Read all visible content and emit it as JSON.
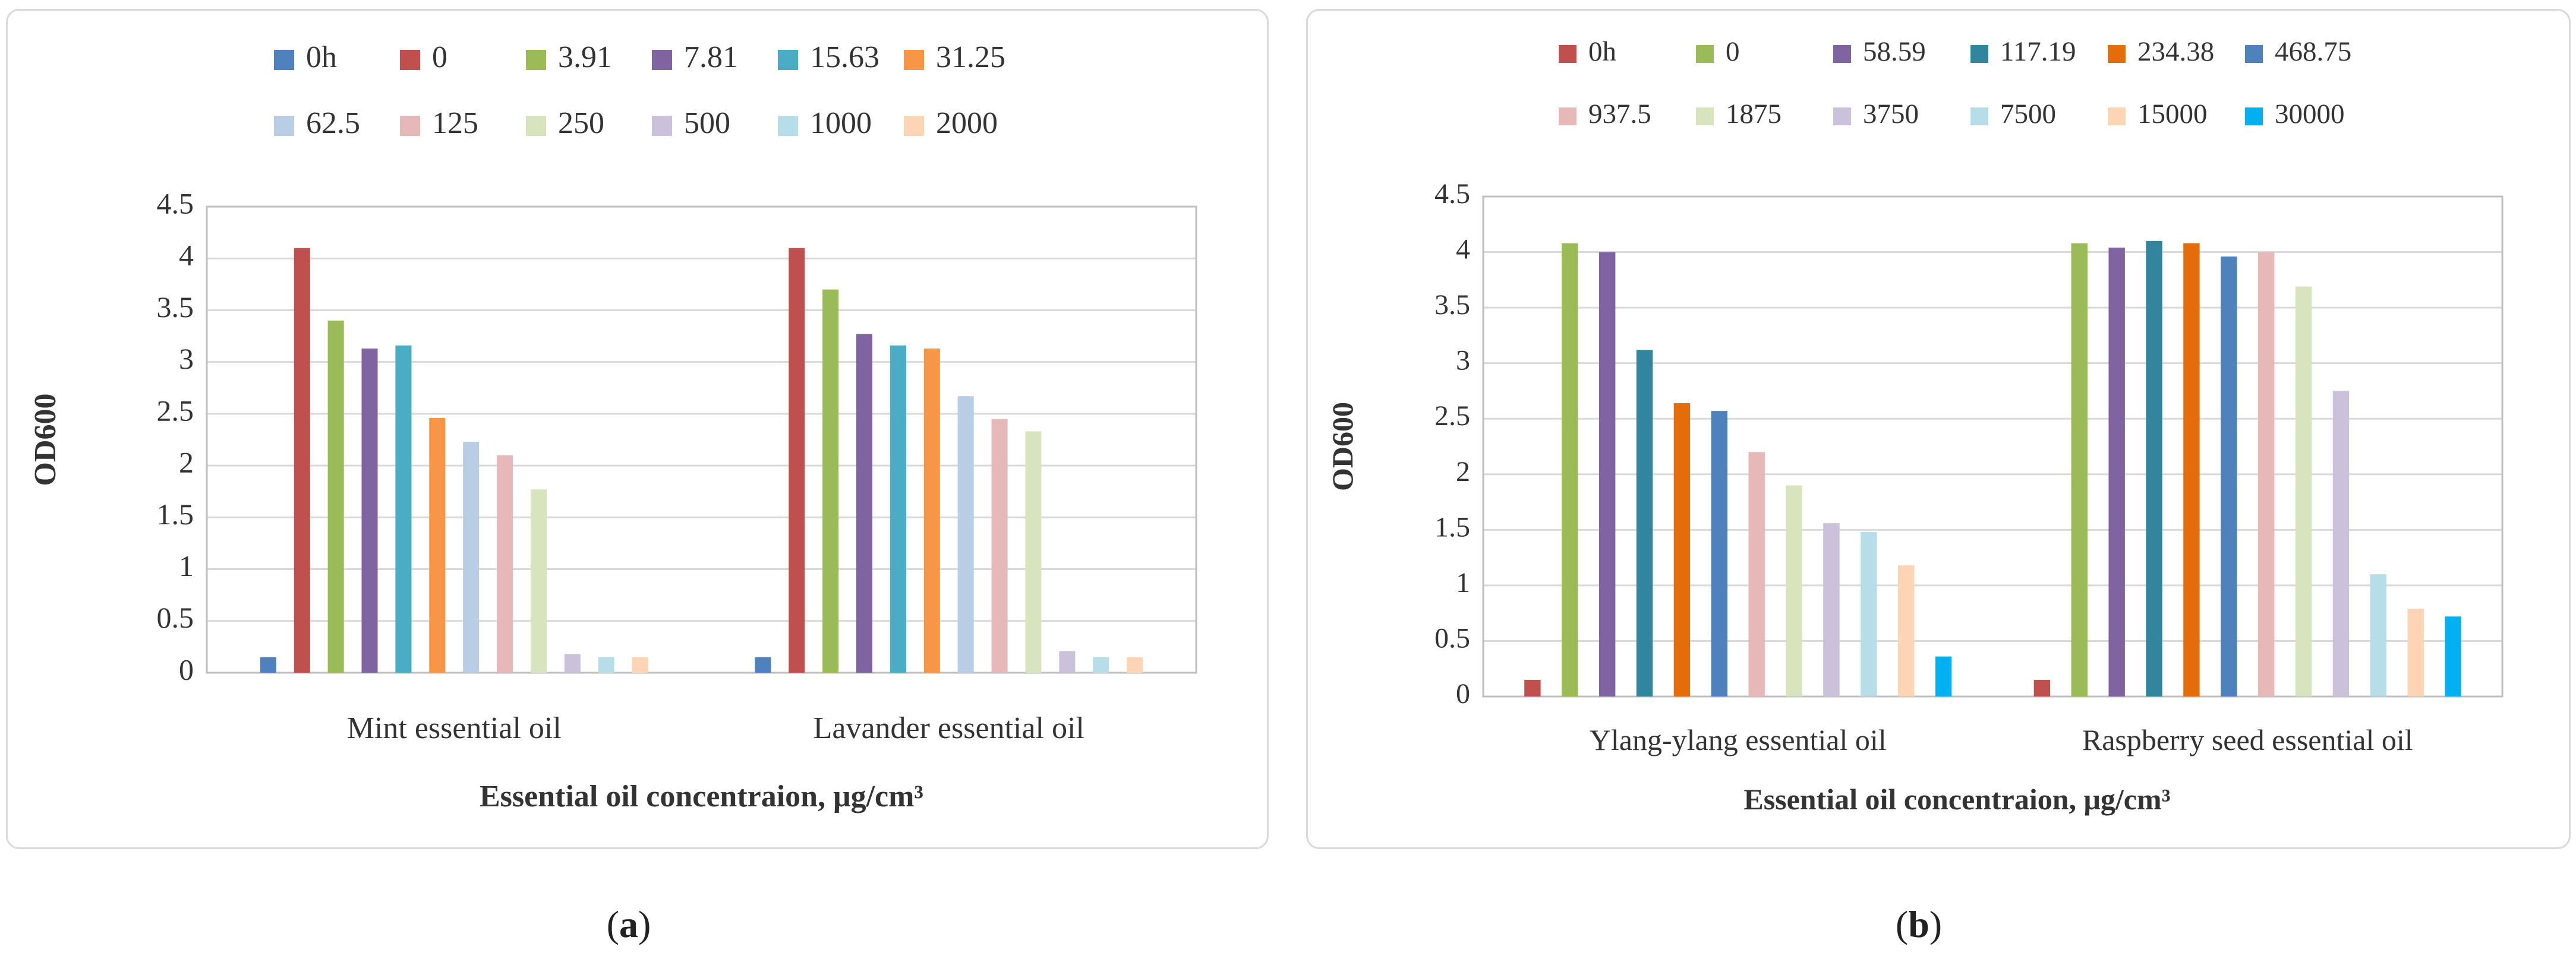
{
  "chart_data": [
    {
      "type": "bar",
      "panel_label": "a",
      "title": "",
      "xlabel": "Essential oil concentraion, μg/cm³",
      "ylabel": "OD600",
      "ylim": [
        0,
        4.5
      ],
      "yticks": [
        "0",
        "0.5",
        "1",
        "1.5",
        "2",
        "2.5",
        "3",
        "3.5",
        "4",
        "4.5"
      ],
      "categories": [
        "Mint essential oil",
        "Lavander essential oil"
      ],
      "legend_position": "top",
      "grid": true,
      "series": [
        {
          "name": "0h",
          "color": "#4f81bd",
          "values": [
            0.15,
            0.15
          ]
        },
        {
          "name": "0",
          "color": "#c0504d",
          "values": [
            4.1,
            4.1
          ]
        },
        {
          "name": "3.91",
          "color": "#9bbb59",
          "values": [
            3.4,
            3.7
          ]
        },
        {
          "name": "7.81",
          "color": "#8064a2",
          "values": [
            3.13,
            3.27
          ]
        },
        {
          "name": "15.63",
          "color": "#4bacc6",
          "values": [
            3.16,
            3.16
          ]
        },
        {
          "name": "31.25",
          "color": "#f79646",
          "values": [
            2.46,
            3.13
          ]
        },
        {
          "name": "62.5",
          "color": "#b9cde5",
          "values": [
            2.23,
            2.67
          ]
        },
        {
          "name": "125",
          "color": "#e6b9b8",
          "values": [
            2.1,
            2.45
          ]
        },
        {
          "name": "250",
          "color": "#d7e4bd",
          "values": [
            1.77,
            2.33
          ]
        },
        {
          "name": "500",
          "color": "#ccc1da",
          "values": [
            0.18,
            0.21
          ]
        },
        {
          "name": "1000",
          "color": "#b7dee8",
          "values": [
            0.15,
            0.15
          ]
        },
        {
          "name": "2000",
          "color": "#fcd5b5",
          "values": [
            0.15,
            0.15
          ]
        }
      ]
    },
    {
      "type": "bar",
      "panel_label": "b",
      "title": "",
      "xlabel": "Essential oil concentraion, μg/cm³",
      "ylabel": "OD600",
      "ylim": [
        0,
        4.5
      ],
      "yticks": [
        "0",
        "0.5",
        "1",
        "1.5",
        "2",
        "2.5",
        "3",
        "3.5",
        "4",
        "4.5"
      ],
      "categories": [
        "Ylang-ylang essential oil",
        "Raspberry seed essential oil"
      ],
      "legend_position": "top",
      "grid": true,
      "series": [
        {
          "name": "0h",
          "color": "#c0504d",
          "values": [
            0.15,
            0.15
          ]
        },
        {
          "name": "0",
          "color": "#9bbb59",
          "values": [
            4.08,
            4.08
          ]
        },
        {
          "name": "58.59",
          "color": "#8064a2",
          "values": [
            4.0,
            4.04
          ]
        },
        {
          "name": "117.19",
          "color": "#31859c",
          "values": [
            3.12,
            4.1
          ]
        },
        {
          "name": "234.38",
          "color": "#e46c0a",
          "values": [
            2.64,
            4.08
          ]
        },
        {
          "name": "468.75",
          "color": "#4f81bd",
          "values": [
            2.57,
            3.96
          ]
        },
        {
          "name": "937.5",
          "color": "#e6b9b8",
          "values": [
            2.2,
            4.0
          ]
        },
        {
          "name": "1875",
          "color": "#d7e4bd",
          "values": [
            1.9,
            3.69
          ]
        },
        {
          "name": "3750",
          "color": "#ccc1da",
          "values": [
            1.56,
            2.75
          ]
        },
        {
          "name": "7500",
          "color": "#b7dee8",
          "values": [
            1.48,
            1.1
          ]
        },
        {
          "name": "15000",
          "color": "#fcd5b5",
          "values": [
            1.18,
            0.79
          ]
        },
        {
          "name": "30000",
          "color": "#00b0f0",
          "values": [
            0.36,
            0.72
          ]
        }
      ]
    }
  ]
}
